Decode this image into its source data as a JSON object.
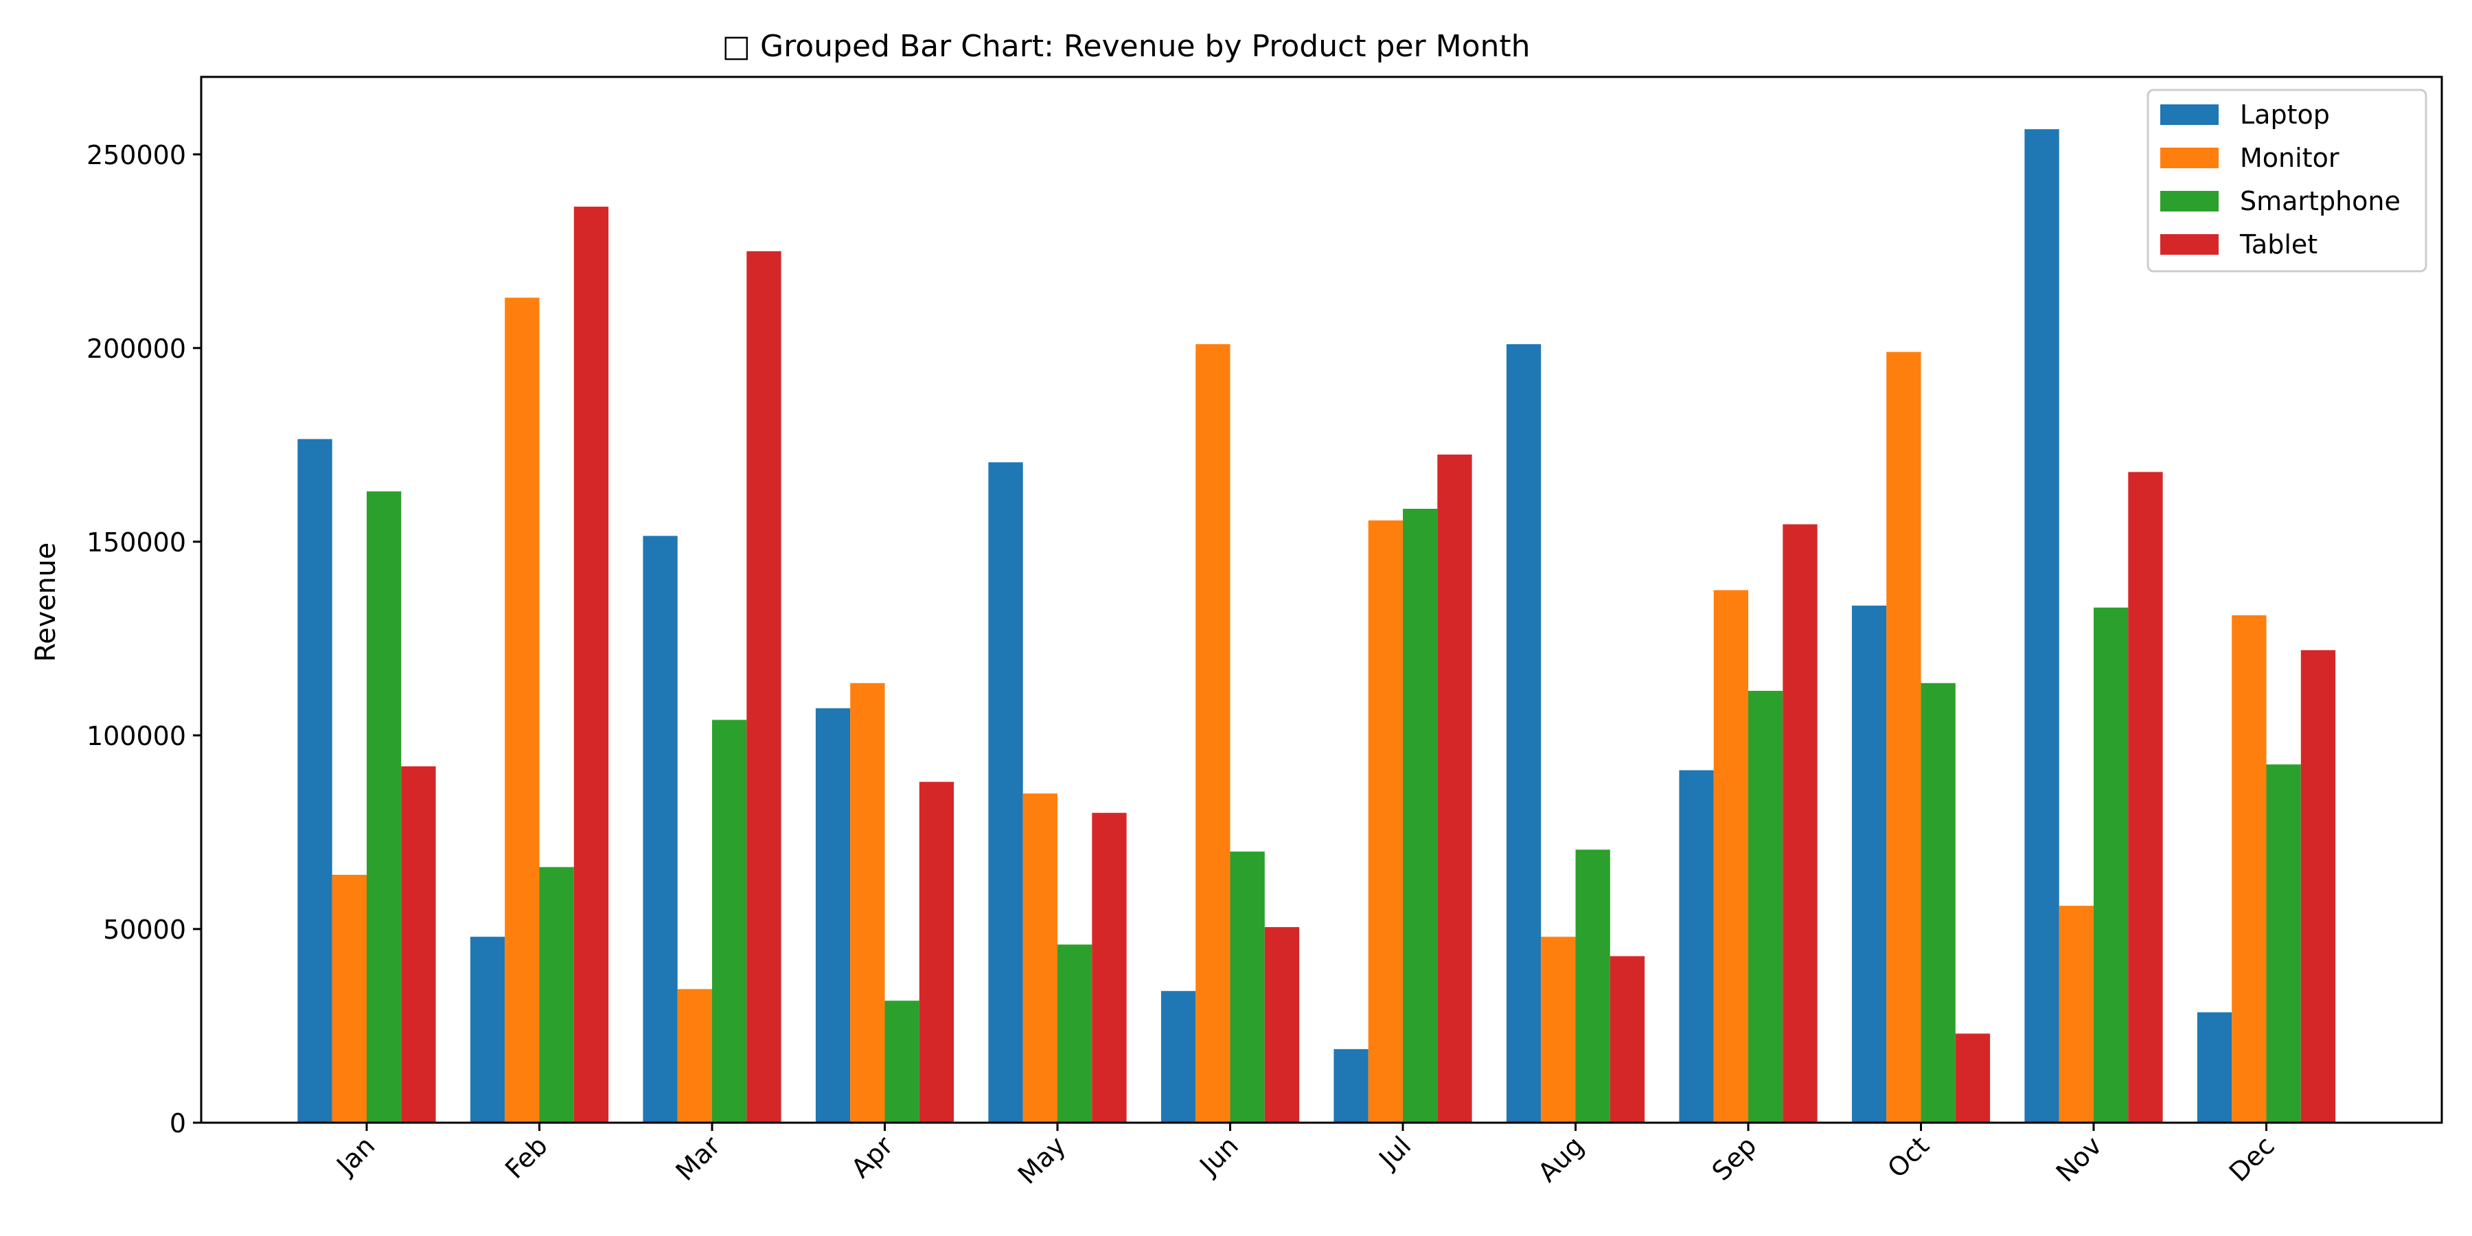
{
  "chart_data": {
    "type": "bar",
    "title": "□ Grouped Bar Chart: Revenue by Product per Month",
    "xlabel": "",
    "ylabel": "Revenue",
    "ylim": [
      0,
      270000
    ],
    "yticks": [
      0,
      50000,
      100000,
      150000,
      200000,
      250000
    ],
    "ytick_labels": [
      "0",
      "50000",
      "100000",
      "150000",
      "200000",
      "250000"
    ],
    "categories": [
      "Jan",
      "Feb",
      "Mar",
      "Apr",
      "May",
      "Jun",
      "Jul",
      "Aug",
      "Sep",
      "Oct",
      "Nov",
      "Dec"
    ],
    "xtick_rotation": 45,
    "grid": false,
    "legend_position": "top-right",
    "series": [
      {
        "name": "Laptop",
        "color": "#1f77b4",
        "values": [
          176500,
          48000,
          151500,
          107000,
          170500,
          34000,
          19000,
          201000,
          91000,
          133500,
          256500,
          28500
        ]
      },
      {
        "name": "Monitor",
        "color": "#ff7f0e",
        "values": [
          64000,
          213000,
          34500,
          113500,
          85000,
          201000,
          155500,
          48000,
          137500,
          199000,
          56000,
          131000
        ]
      },
      {
        "name": "Smartphone",
        "color": "#2ca02c",
        "values": [
          163000,
          66000,
          104000,
          31500,
          46000,
          70000,
          158500,
          70500,
          111500,
          113500,
          133000,
          92500
        ]
      },
      {
        "name": "Tablet",
        "color": "#d62728",
        "values": [
          92000,
          236500,
          225000,
          88000,
          80000,
          50500,
          172500,
          43000,
          154500,
          23000,
          168000,
          122000
        ]
      }
    ]
  }
}
